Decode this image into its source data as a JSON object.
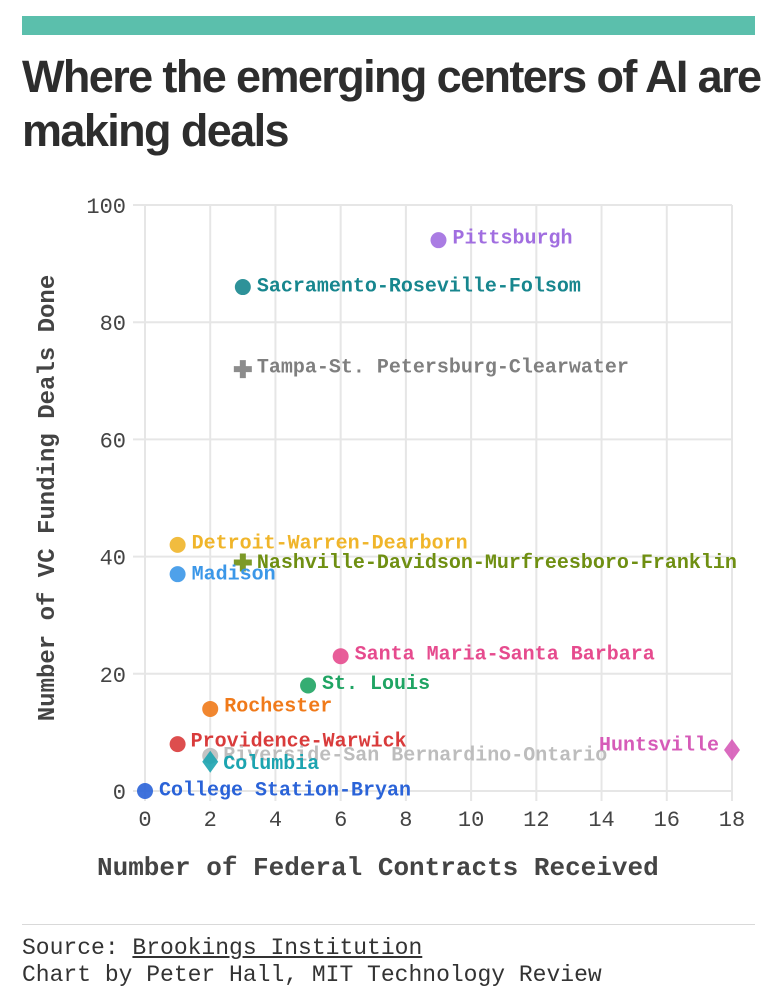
{
  "title": "Where the emerging centers of AI are making deals",
  "source": {
    "prefix": "Source: ",
    "name": "Brookings Institution",
    "credit": "Chart by Peter Hall, MIT Technology Review"
  },
  "chart_data": {
    "type": "scatter",
    "title": "",
    "xlabel": "Number of Federal Contracts Received",
    "ylabel": "Number of VC Funding Deals Done",
    "xlim": [
      0,
      18
    ],
    "ylim": [
      0,
      100
    ],
    "xticks": [
      0,
      2,
      4,
      6,
      8,
      10,
      12,
      14,
      16,
      18
    ],
    "yticks": [
      0,
      20,
      40,
      60,
      80,
      100
    ],
    "grid": true,
    "legend": "none",
    "points": [
      {
        "label": "Pittsburgh",
        "x": 9,
        "y": 94,
        "color": "#a16ee0",
        "marker": "circle"
      },
      {
        "label": "Sacramento-Roseville-Folsom",
        "x": 3,
        "y": 86,
        "color": "#17868e",
        "marker": "circle"
      },
      {
        "label": "Tampa-St. Petersburg-Clearwater",
        "x": 3,
        "y": 72,
        "color": "#7f7f7f",
        "marker": "cross"
      },
      {
        "label": "Detroit-Warren-Dearborn",
        "x": 1,
        "y": 42,
        "color": "#f0b52a",
        "marker": "circle"
      },
      {
        "label": "Nashville-Davidson-Murfreesboro-Franklin",
        "x": 3,
        "y": 39,
        "color": "#6f8f12",
        "marker": "cross"
      },
      {
        "label": "Madison",
        "x": 1,
        "y": 37,
        "color": "#3b97e8",
        "marker": "circle"
      },
      {
        "label": "Santa Maria-Santa Barbara",
        "x": 6,
        "y": 23,
        "color": "#e64b8e",
        "marker": "circle"
      },
      {
        "label": "St. Louis",
        "x": 5,
        "y": 18,
        "color": "#1fa463",
        "marker": "circle"
      },
      {
        "label": "Rochester",
        "x": 2,
        "y": 14,
        "color": "#f07a1a",
        "marker": "circle"
      },
      {
        "label": "Providence-Warwick",
        "x": 1,
        "y": 8,
        "color": "#d93b3b",
        "marker": "circle"
      },
      {
        "label": "Riverside-San Bernardino-Ontario",
        "x": 2,
        "y": 6,
        "color": "#bdbdbd",
        "marker": "circle"
      },
      {
        "label": "Huntsville",
        "x": 18,
        "y": 7,
        "color": "#d65bb8",
        "marker": "diamond"
      },
      {
        "label": "Columbia",
        "x": 2,
        "y": 5,
        "color": "#1ca4b0",
        "marker": "diamond"
      },
      {
        "label": "College Station-Bryan",
        "x": 0,
        "y": 0,
        "color": "#2a63d8",
        "marker": "circle"
      }
    ]
  }
}
